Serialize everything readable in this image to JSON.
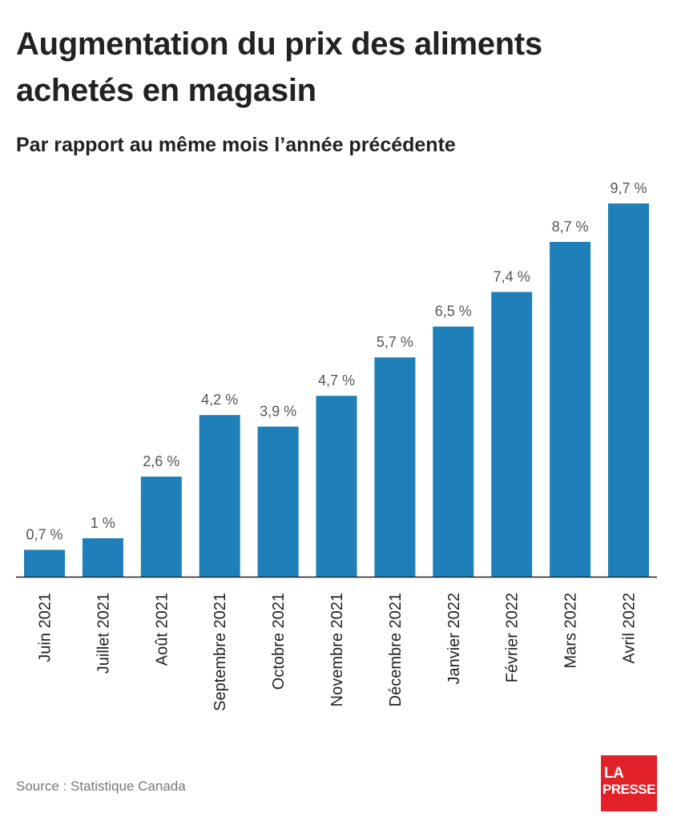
{
  "title": "Augmentation du prix des aliments achetés en magasin",
  "subtitle": "Par rapport au même mois l’année précédente",
  "source": "Source : Statistique Canada",
  "logo": {
    "line1": "LA",
    "line2": "PRESSE"
  },
  "colors": {
    "bar": "#1f7fb8",
    "axis": "#222222",
    "logo": "#e32128"
  },
  "chart_data": {
    "type": "bar",
    "categories": [
      "Juin 2021",
      "Juillet 2021",
      "Août 2021",
      "Septembre 2021",
      "Octobre 2021",
      "Novembre 2021",
      "Décembre 2021",
      "Janvier 2022",
      "Février 2022",
      "Mars 2022",
      "Avril 2022"
    ],
    "values": [
      0.7,
      1,
      2.6,
      4.2,
      3.9,
      4.7,
      5.7,
      6.5,
      7.4,
      8.7,
      9.7
    ],
    "value_labels": [
      "0,7 %",
      "1 %",
      "2,6 %",
      "4,2 %",
      "3,9 %",
      "4,7 %",
      "5,7 %",
      "6,5 %",
      "7,4 %",
      "8,7 %",
      "9,7 %"
    ],
    "title": "Augmentation du prix des aliments achetés en magasin",
    "subtitle": "Par rapport au même mois l’année précédente",
    "xlabel": "",
    "ylabel": "",
    "ylim": [
      0,
      9.7
    ],
    "grid": false,
    "legend": "none"
  }
}
